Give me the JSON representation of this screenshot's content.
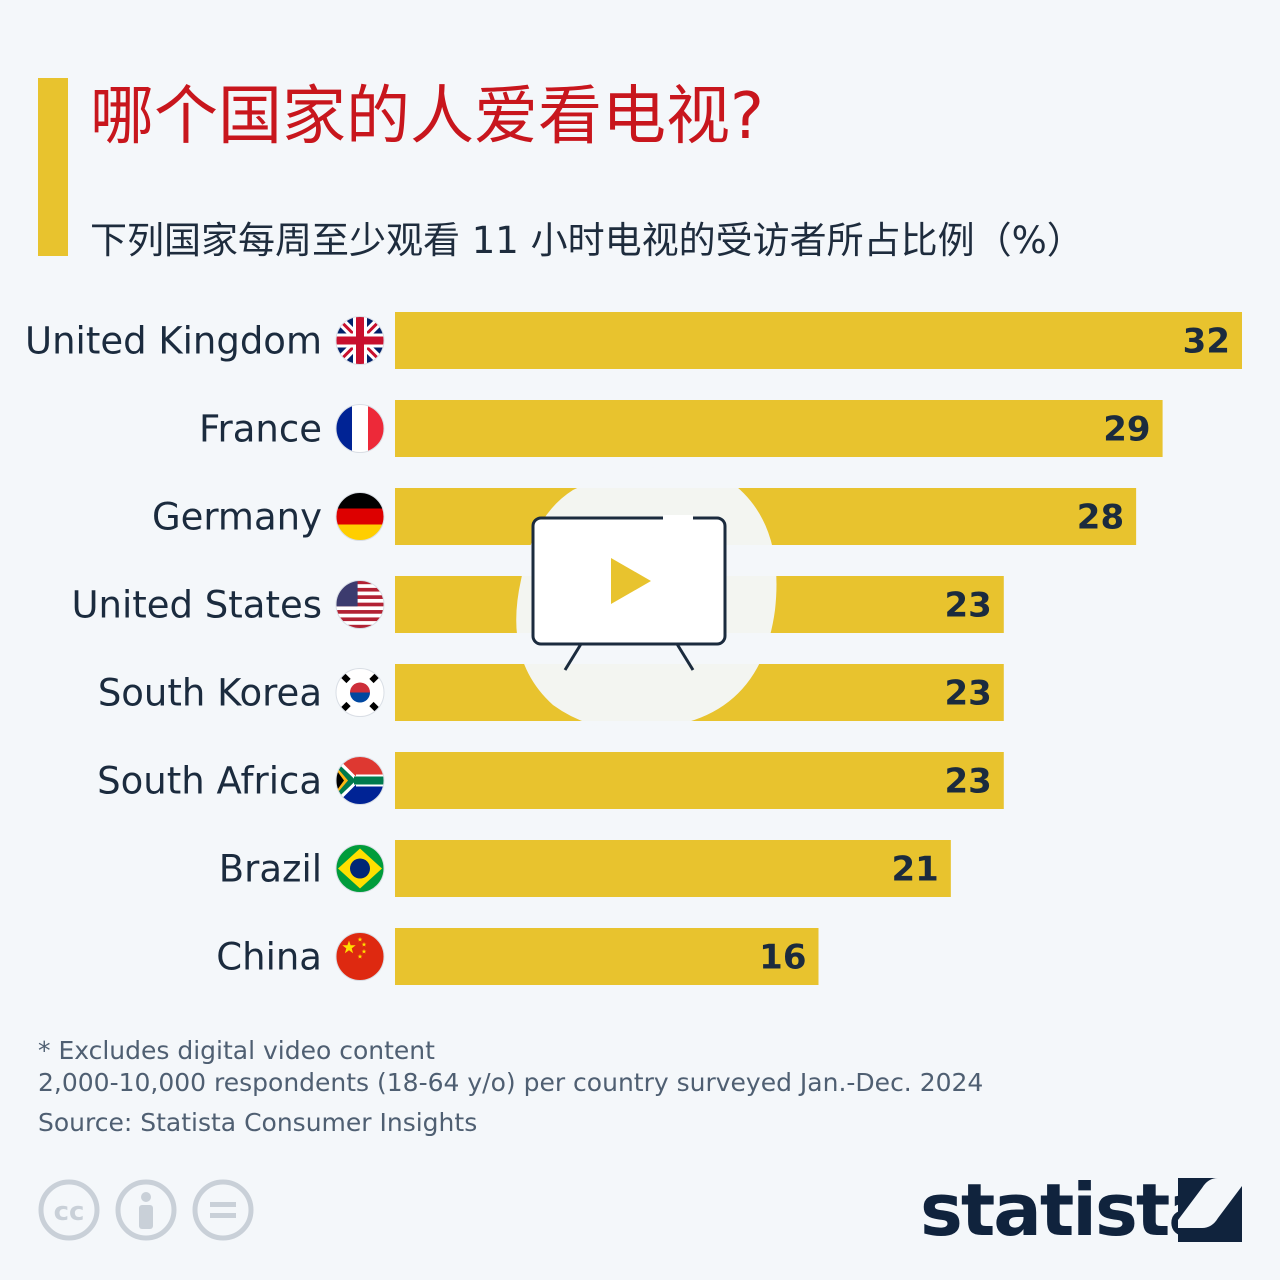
{
  "header": {
    "title": "哪个国家的人爱看电视?",
    "subtitle": "下列国家每周至少观看 11 小时电视的受访者所占比例（%）"
  },
  "chart_data": {
    "type": "bar",
    "orientation": "horizontal",
    "categories": [
      "United Kingdom",
      "France",
      "Germany",
      "United States",
      "South Korea",
      "South Africa",
      "Brazil",
      "China"
    ],
    "values": [
      32,
      29,
      28,
      23,
      23,
      23,
      21,
      16
    ],
    "value_labels": [
      "32",
      "29",
      "28",
      "23",
      "23",
      "23",
      "21",
      "16"
    ],
    "flags": [
      "uk-flag-icon",
      "france-flag-icon",
      "germany-flag-icon",
      "us-flag-icon",
      "south-korea-flag-icon",
      "south-africa-flag-icon",
      "brazil-flag-icon",
      "china-flag-icon"
    ],
    "xlim": [
      0,
      32
    ],
    "bar_color": "#e8c32e",
    "grid": false
  },
  "footer": {
    "note1": "* Excludes digital video content",
    "note2": "2,000-10,000 respondents (18-64 y/o) per country surveyed Jan.-Dec. 2024",
    "source": "Source: Statista Consumer Insights",
    "brand": "statista",
    "license_icons": [
      "cc-icon",
      "attribution-icon",
      "no-derivatives-icon"
    ]
  },
  "overlay": {
    "icon": "tv-play-icon"
  },
  "colors": {
    "accent": "#e8c32e",
    "title": "#c8161d",
    "text": "#1b2b3e",
    "brand": "#10233d"
  }
}
